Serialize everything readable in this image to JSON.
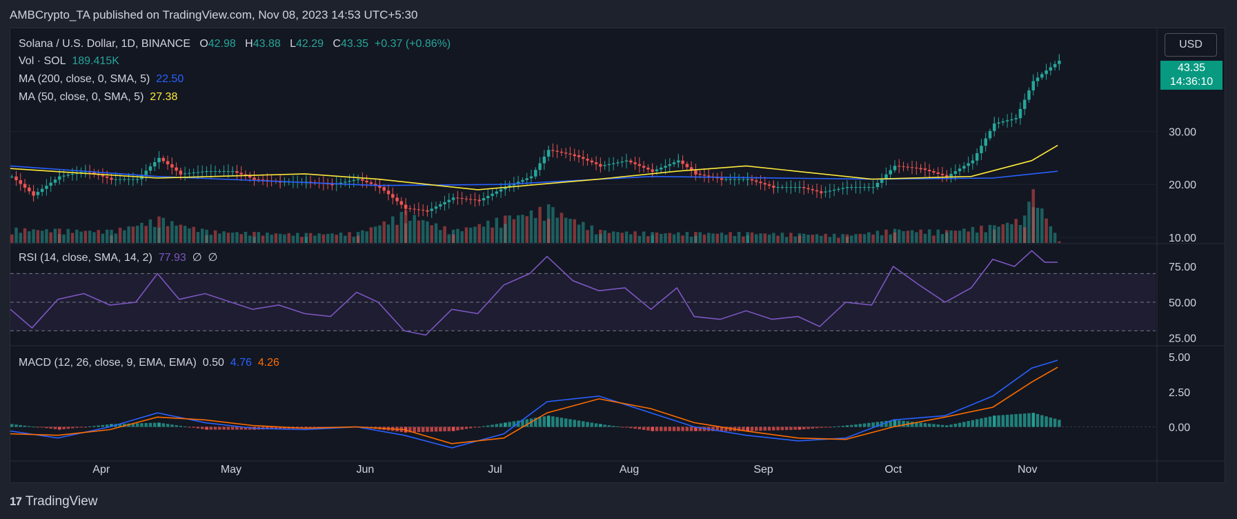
{
  "header": {
    "published_by": "AMBCrypto_TA published on TradingView.com, Nov 08, 2023 14:53 UTC+5:30"
  },
  "price_legend": {
    "symbol": "Solana / U.S. Dollar, 1D, BINANCE",
    "o_label": "O",
    "o_value": "42.98",
    "h_label": "H",
    "h_value": "43.88",
    "l_label": "L",
    "l_value": "42.29",
    "c_label": "C",
    "c_value": "43.35",
    "change": "+0.37 (+0.86%)"
  },
  "volume_legend": {
    "label": "Vol · SOL",
    "value": "189.415K"
  },
  "ma200_legend": {
    "label": "MA (200, close, 0, SMA, 5)",
    "value": "22.50"
  },
  "ma50_legend": {
    "label": "MA (50, close, 0, SMA, 5)",
    "value": "27.38"
  },
  "rsi_legend": {
    "label": "RSI (14, close, SMA, 14, 2)",
    "value": "77.93",
    "extra1": "∅",
    "extra2": "∅"
  },
  "macd_legend": {
    "label": "MACD (12, 26, close, 9, EMA, EMA)",
    "hist": "0.50",
    "macd": "4.76",
    "signal": "4.26"
  },
  "currency_button": "USD",
  "last_price": {
    "value": "43.35",
    "countdown": "14:36:10"
  },
  "brand": {
    "logo": "17",
    "name": "TradingView"
  },
  "colors": {
    "bg": "#131722",
    "up": "#26a69a",
    "down": "#ef5350",
    "ma200": "#2962ff",
    "ma50": "#ffeb3b",
    "rsi": "#7e57c2",
    "macd": "#2962ff",
    "signal": "#ff6d00"
  },
  "chart_data": [
    {
      "type": "candlestick",
      "title": "Solana / U.S. Dollar, 1D, BINANCE",
      "x_ticks": [
        "Apr",
        "May",
        "Jun",
        "Jul",
        "Aug",
        "Sep",
        "Oct",
        "Nov"
      ],
      "y_ticks": [
        10,
        20,
        30
      ],
      "ylim": [
        10,
        47
      ],
      "close_path": [
        {
          "x": "Mar 11",
          "y": 21.5
        },
        {
          "x": "Mar 16",
          "y": 18.0
        },
        {
          "x": "Mar 22",
          "y": 21.5
        },
        {
          "x": "Mar 28",
          "y": 22.5
        },
        {
          "x": "Apr 3",
          "y": 21.0
        },
        {
          "x": "Apr 9",
          "y": 21.0
        },
        {
          "x": "Apr 14",
          "y": 25.0
        },
        {
          "x": "Apr 19",
          "y": 22.0
        },
        {
          "x": "Apr 25",
          "y": 22.5
        },
        {
          "x": "May 1",
          "y": 22.5
        },
        {
          "x": "May 6",
          "y": 21.0
        },
        {
          "x": "May 12",
          "y": 20.5
        },
        {
          "x": "May 18",
          "y": 20.5
        },
        {
          "x": "May 24",
          "y": 20.0
        },
        {
          "x": "May 30",
          "y": 21.0
        },
        {
          "x": "Jun 4",
          "y": 19.5
        },
        {
          "x": "Jun 10",
          "y": 15.5
        },
        {
          "x": "Jun 15",
          "y": 15.0
        },
        {
          "x": "Jun 21",
          "y": 17.5
        },
        {
          "x": "Jun 27",
          "y": 17.0
        },
        {
          "x": "Jul 3",
          "y": 19.5
        },
        {
          "x": "Jul 9",
          "y": 21.5
        },
        {
          "x": "Jul 13",
          "y": 26.5
        },
        {
          "x": "Jul 19",
          "y": 25.5
        },
        {
          "x": "Jul 25",
          "y": 23.5
        },
        {
          "x": "Jul 31",
          "y": 24.5
        },
        {
          "x": "Aug 6",
          "y": 22.5
        },
        {
          "x": "Aug 12",
          "y": 24.5
        },
        {
          "x": "Aug 16",
          "y": 22.0
        },
        {
          "x": "Aug 22",
          "y": 21.0
        },
        {
          "x": "Aug 28",
          "y": 21.0
        },
        {
          "x": "Sep 3",
          "y": 19.5
        },
        {
          "x": "Sep 9",
          "y": 19.5
        },
        {
          "x": "Sep 14",
          "y": 18.5
        },
        {
          "x": "Sep 20",
          "y": 19.5
        },
        {
          "x": "Sep 26",
          "y": 19.5
        },
        {
          "x": "Oct 1",
          "y": 23.5
        },
        {
          "x": "Oct 7",
          "y": 23.0
        },
        {
          "x": "Oct 13",
          "y": 21.5
        },
        {
          "x": "Oct 19",
          "y": 24.5
        },
        {
          "x": "Oct 24",
          "y": 31.5
        },
        {
          "x": "Oct 29",
          "y": 32.5
        },
        {
          "x": "Nov 2",
          "y": 39.5
        },
        {
          "x": "Nov 5",
          "y": 41.5
        },
        {
          "x": "Nov 8",
          "y": 43.35
        }
      ],
      "ma200_path": [
        {
          "x": "Mar 11",
          "y": 23.5
        },
        {
          "x": "Apr 14",
          "y": 21.5
        },
        {
          "x": "Jun 4",
          "y": 19.8
        },
        {
          "x": "Jul 3",
          "y": 20.0
        },
        {
          "x": "Aug 6",
          "y": 21.5
        },
        {
          "x": "Sep 26",
          "y": 21.0
        },
        {
          "x": "Oct 24",
          "y": 21.2
        },
        {
          "x": "Nov 8",
          "y": 22.5
        }
      ],
      "ma50_path": [
        {
          "x": "Mar 11",
          "y": 23.0
        },
        {
          "x": "Apr 14",
          "y": 21.2
        },
        {
          "x": "May 18",
          "y": 22.0
        },
        {
          "x": "Jun 4",
          "y": 21.0
        },
        {
          "x": "Jun 27",
          "y": 19.0
        },
        {
          "x": "Jul 25",
          "y": 21.0
        },
        {
          "x": "Aug 12",
          "y": 22.5
        },
        {
          "x": "Aug 28",
          "y": 23.5
        },
        {
          "x": "Sep 26",
          "y": 21.0
        },
        {
          "x": "Oct 19",
          "y": 21.5
        },
        {
          "x": "Nov 2",
          "y": 24.5
        },
        {
          "x": "Nov 8",
          "y": 27.38
        }
      ]
    },
    {
      "type": "bar",
      "title": "Vol · SOL",
      "x": [
        "Mar 11",
        "Mar 22",
        "Apr 3",
        "Apr 14",
        "Apr 25",
        "May 6",
        "May 18",
        "May 30",
        "Jun 10",
        "Jun 21",
        "Jul 3",
        "Jul 13",
        "Jul 25",
        "Aug 6",
        "Aug 16",
        "Aug 28",
        "Sep 9",
        "Sep 20",
        "Oct 1",
        "Oct 13",
        "Oct 24",
        "Oct 31",
        "Nov 2",
        "Nov 8"
      ],
      "values": [
        1.4,
        1.3,
        1.2,
        2.4,
        1.2,
        1.0,
        0.9,
        1.0,
        3.0,
        1.2,
        2.5,
        3.5,
        1.2,
        1.0,
        1.0,
        1.0,
        0.9,
        0.8,
        1.3,
        1.2,
        1.7,
        2.5,
        5.0,
        0.19
      ]
    },
    {
      "type": "line",
      "title": "RSI (14, close, SMA, 14, 2)",
      "y_ticks": [
        25,
        50,
        75
      ],
      "ylim": [
        20,
        90
      ],
      "band": [
        30,
        70
      ],
      "x": [
        "Mar 11",
        "Mar 16",
        "Mar 22",
        "Mar 28",
        "Apr 3",
        "Apr 9",
        "Apr 14",
        "Apr 19",
        "Apr 25",
        "May 1",
        "May 6",
        "May 12",
        "May 18",
        "May 24",
        "May 30",
        "Jun 4",
        "Jun 10",
        "Jun 15",
        "Jun 21",
        "Jun 27",
        "Jul 3",
        "Jul 9",
        "Jul 13",
        "Jul 19",
        "Jul 25",
        "Jul 31",
        "Aug 6",
        "Aug 12",
        "Aug 16",
        "Aug 22",
        "Aug 28",
        "Sep 3",
        "Sep 9",
        "Sep 14",
        "Sep 20",
        "Sep 26",
        "Oct 1",
        "Oct 7",
        "Oct 13",
        "Oct 19",
        "Oct 24",
        "Oct 29",
        "Nov 2",
        "Nov 5",
        "Nov 8"
      ],
      "values": [
        45,
        32,
        52,
        56,
        48,
        50,
        70,
        52,
        56,
        50,
        45,
        48,
        42,
        40,
        57,
        50,
        30,
        27,
        45,
        42,
        62,
        70,
        82,
        65,
        58,
        60,
        45,
        60,
        40,
        38,
        44,
        38,
        40,
        33,
        50,
        48,
        75,
        62,
        50,
        60,
        80,
        75,
        86,
        78,
        77.93
      ]
    },
    {
      "type": "line",
      "title": "MACD (12, 26, close, 9, EMA, EMA)",
      "y_ticks": [
        0.0,
        2.5,
        5.0
      ],
      "ylim": [
        -1.8,
        5.3
      ],
      "x": [
        "Mar 11",
        "Mar 22",
        "Apr 3",
        "Apr 14",
        "Apr 25",
        "May 6",
        "May 18",
        "May 30",
        "Jun 10",
        "Jun 21",
        "Jul 3",
        "Jul 13",
        "Jul 25",
        "Aug 6",
        "Aug 16",
        "Aug 28",
        "Sep 9",
        "Sep 20",
        "Oct 1",
        "Oct 13",
        "Oct 24",
        "Nov 2",
        "Nov 8"
      ],
      "series": [
        {
          "name": "MACD",
          "values": [
            -0.3,
            -0.8,
            0.0,
            1.0,
            0.3,
            -0.1,
            -0.2,
            0.0,
            -0.6,
            -1.5,
            -0.5,
            1.8,
            2.2,
            1.0,
            0.0,
            -0.6,
            -1.0,
            -0.8,
            0.5,
            0.8,
            2.2,
            4.2,
            4.76
          ]
        },
        {
          "name": "Signal",
          "values": [
            -0.5,
            -0.6,
            -0.2,
            0.7,
            0.5,
            0.1,
            -0.1,
            0.0,
            -0.2,
            -1.2,
            -0.8,
            1.0,
            2.0,
            1.3,
            0.3,
            -0.3,
            -0.8,
            -0.9,
            0.0,
            0.7,
            1.4,
            3.2,
            4.26
          ]
        },
        {
          "name": "Histogram",
          "values": [
            0.2,
            -0.2,
            0.2,
            0.3,
            -0.2,
            -0.2,
            -0.1,
            0.0,
            -0.4,
            -0.3,
            0.3,
            0.8,
            0.2,
            -0.3,
            -0.3,
            -0.3,
            -0.2,
            0.1,
            0.5,
            0.1,
            0.8,
            1.0,
            0.5
          ]
        }
      ]
    }
  ]
}
